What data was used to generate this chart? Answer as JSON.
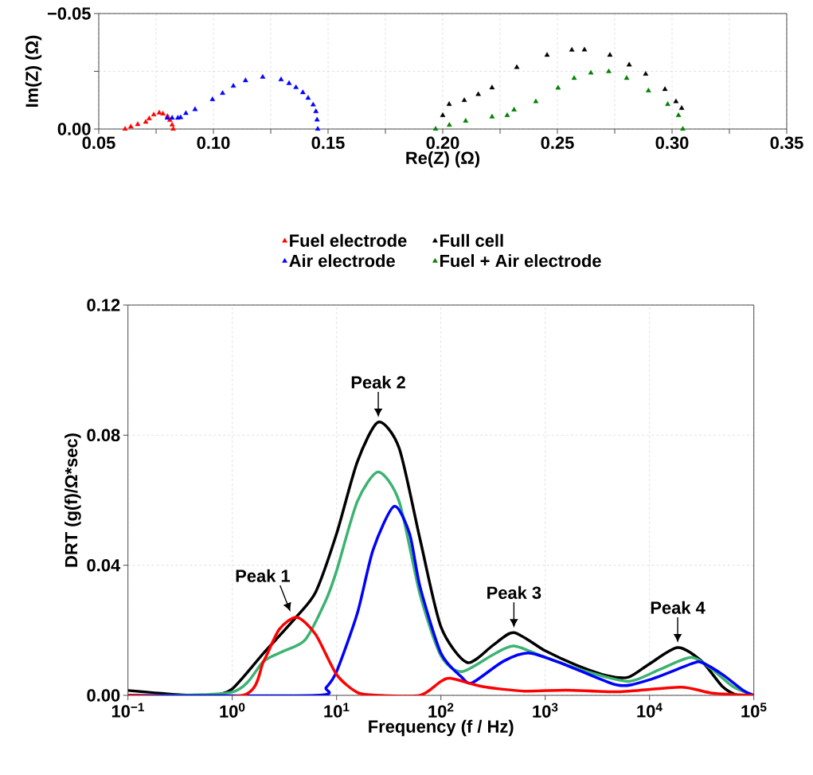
{
  "chart_data": [
    {
      "type": "scatter",
      "xlabel": "Re(Z) (Ω)",
      "ylabel": "Im(Z) (Ω)",
      "xlim": [
        0.05,
        0.35
      ],
      "ylim": [
        0,
        -0.05
      ],
      "xticks": [
        {
          "value": 0.05,
          "label": "0.05"
        },
        {
          "value": 0.075,
          "label": null
        },
        {
          "value": 0.1,
          "label": "0.10"
        },
        {
          "value": 0.125,
          "label": null
        },
        {
          "value": 0.15,
          "label": "0.15"
        },
        {
          "value": 0.175,
          "label": null
        },
        {
          "value": 0.2,
          "label": "0.20"
        },
        {
          "value": 0.225,
          "label": null
        },
        {
          "value": 0.25,
          "label": "0.25"
        },
        {
          "value": 0.275,
          "label": null
        },
        {
          "value": 0.3,
          "label": "0.30"
        },
        {
          "value": 0.325,
          "label": null
        },
        {
          "value": 0.35,
          "label": "0.35"
        }
      ],
      "yticks": [
        {
          "value": 0,
          "label": "0.00"
        },
        {
          "value": -0.025,
          "label": null
        },
        {
          "value": -0.05,
          "label": "−0.05"
        }
      ],
      "grid": true,
      "legend": "bottom",
      "marker": "triangle",
      "series": [
        {
          "name": "Fuel electrode",
          "color": "#ff0000",
          "x": [
            0.0615,
            0.064,
            0.067,
            0.0705,
            0.072,
            0.074,
            0.0764,
            0.078,
            0.08,
            0.081,
            0.082,
            0.0825
          ],
          "values": [
            0,
            -0.001,
            -0.002,
            -0.003,
            -0.0045,
            -0.0062,
            -0.007,
            -0.0066,
            -0.0055,
            -0.0038,
            -0.0018,
            0
          ]
        },
        {
          "name": "Full cell",
          "color": "#000000",
          "x": [
            0.2,
            0.2028,
            0.2094,
            0.2155,
            0.2215,
            0.2323,
            0.2455,
            0.2563,
            0.2618,
            0.2729,
            0.2813,
            0.2885,
            0.2969,
            0.3017,
            0.3042
          ],
          "values": [
            -0.0059,
            -0.0107,
            -0.0124,
            -0.015,
            -0.0179,
            -0.0267,
            -0.032,
            -0.0342,
            -0.0343,
            -0.032,
            -0.0278,
            -0.0238,
            -0.0172,
            -0.0119,
            -0.009
          ]
        },
        {
          "name": "Air electrode",
          "color": "#0000ff",
          "x": [
            0.0799,
            0.082,
            0.0845,
            0.0857,
            0.088,
            0.092,
            0.0996,
            0.104,
            0.1087,
            0.114,
            0.1215,
            0.1295,
            0.133,
            0.136,
            0.139,
            0.1413,
            0.1435,
            0.1447,
            0.1452,
            0.1455
          ],
          "values": [
            -0.0048,
            -0.0048,
            -0.0048,
            -0.005,
            -0.0068,
            -0.0085,
            -0.0128,
            -0.0155,
            -0.0186,
            -0.021,
            -0.0225,
            -0.0214,
            -0.0198,
            -0.018,
            -0.0158,
            -0.0134,
            -0.0105,
            -0.0076,
            -0.004,
            0
          ]
        },
        {
          "name": "Fuel + Air electrode",
          "color": "#008000",
          "x": [
            0.1969,
            0.2029,
            0.21,
            0.2215,
            0.2281,
            0.2311,
            0.2406,
            0.2503,
            0.2573,
            0.2646,
            0.2724,
            0.2802,
            0.2897,
            0.2981,
            0.3028,
            0.3047
          ],
          "values": [
            0,
            -0.0017,
            -0.0035,
            -0.0053,
            -0.0059,
            -0.0083,
            -0.0119,
            -0.0178,
            -0.022,
            -0.0243,
            -0.0249,
            -0.022,
            -0.0166,
            -0.0107,
            -0.0059,
            0
          ]
        }
      ]
    },
    {
      "type": "line",
      "xlabel": "Frequency (f / Hz)",
      "ylabel": "DRT (g(f)/Ω*sec)",
      "log": "x",
      "xlim": [
        0.1,
        100000
      ],
      "ylim": [
        0,
        0.12
      ],
      "xticks": [
        {
          "value": 0.1,
          "label": "10$^{−1}$"
        },
        {
          "value": 1,
          "label": "10$^{0}$"
        },
        {
          "value": 10,
          "label": "10$^{1}$"
        },
        {
          "value": 100,
          "label": "10$^{2}$"
        },
        {
          "value": 1000,
          "label": "10$^{3}$"
        },
        {
          "value": 10000,
          "label": "10$^{4}$"
        },
        {
          "value": 100000,
          "label": "10$^{5}$"
        }
      ],
      "yticks": [
        {
          "value": 0,
          "label": "0.00"
        },
        {
          "value": 0.04,
          "label": "0.04"
        },
        {
          "value": 0.08,
          "label": "0.08"
        },
        {
          "value": 0.12,
          "label": "0.12"
        }
      ],
      "grid": true,
      "marker": "none",
      "annotations": [
        {
          "text": "Peak 1",
          "x": 4.17,
          "y": 0.024
        },
        {
          "text": "Peak 2",
          "x": 25.1,
          "y": 0.084
        },
        {
          "text": "Peak 3",
          "x": 501,
          "y": 0.0193
        },
        {
          "text": "Peak 4",
          "x": 18621,
          "y": 0.0147
        }
      ],
      "series": [
        {
          "color": "#000000",
          "x": [
            0.1,
            0.316,
            0.631,
            1,
            2,
            3.98,
            6.31,
            10,
            15.8,
            25.1,
            39.8,
            63.1,
            100,
            178,
            316,
            501,
            1000,
            1995,
            3981,
            6310,
            10000,
            18621,
            31623,
            50119,
            70795,
            100000
          ],
          "values": [
            0.0015,
            0.0002,
            0,
            0.002,
            0.013,
            0.0236,
            0.0318,
            0.0497,
            0.0718,
            0.084,
            0.076,
            0.048,
            0.0211,
            0.0101,
            0.0154,
            0.0193,
            0.0137,
            0.0093,
            0.006,
            0.0056,
            0.0097,
            0.0147,
            0.0105,
            0.0027,
            0,
            0
          ]
        },
        {
          "color": "#3cb371",
          "x": [
            0.1,
            1,
            2,
            3.16,
            5.01,
            7.94,
            10,
            15.8,
            25.1,
            39.8,
            63.1,
            100,
            158,
            316,
            501,
            1000,
            2512,
            6310,
            12589,
            25119,
            39811,
            63096,
            100000
          ],
          "values": [
            0,
            0.001,
            0.0105,
            0.0137,
            0.0171,
            0.0294,
            0.0383,
            0.0596,
            0.0687,
            0.0596,
            0.031,
            0.0122,
            0.0073,
            0.0125,
            0.0152,
            0.0117,
            0.0073,
            0.0043,
            0.008,
            0.0117,
            0.008,
            0.0027,
            0
          ]
        },
        {
          "color": "#0000ff",
          "x": [
            0.1,
            6.31,
            7.94,
            10,
            15.8,
            22.4,
            35.5,
            50.1,
            63.1,
            100,
            158,
            200,
            398,
            708,
            1585,
            5012,
            10000,
            25119,
            31623,
            50119,
            79433,
            100000
          ],
          "values": [
            0,
            0,
            0.0024,
            0.0073,
            0.0252,
            0.0448,
            0.0581,
            0.0497,
            0.0334,
            0.013,
            0.0056,
            0.0039,
            0.0105,
            0.013,
            0.0093,
            0.0031,
            0.0048,
            0.0097,
            0.0101,
            0.0064,
            0.0015,
            0
          ]
        },
        {
          "color": "#ff0000",
          "x": [
            0.1,
            1.26,
            2,
            2.82,
            4.17,
            6.31,
            10,
            15.8,
            25.1,
            63.1,
            100,
            126,
            251,
            631,
            1585,
            5012,
            19953,
            39811,
            100000
          ],
          "values": [
            0,
            0,
            0.0105,
            0.0203,
            0.024,
            0.0187,
            0.0064,
            0.0009,
            0,
            0,
            0.0043,
            0.0052,
            0.0027,
            0.0013,
            0.0016,
            0.0011,
            0.0025,
            0.0007,
            0
          ]
        }
      ]
    }
  ]
}
